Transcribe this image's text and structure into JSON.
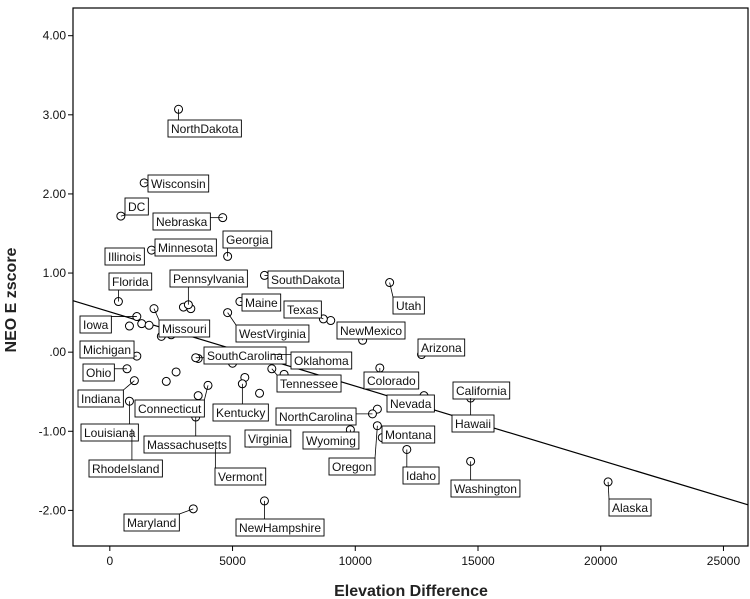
{
  "chart_data": {
    "type": "scatter",
    "xlabel": "Elevation Difference",
    "ylabel": "NEO E zscore",
    "xlim": [
      -1500,
      26000
    ],
    "ylim": [
      -2.45,
      4.35
    ],
    "x_ticks": [
      0,
      5000,
      10000,
      15000,
      20000,
      25000
    ],
    "x_tick_labels": [
      "0",
      "5000",
      "10000",
      "15000",
      "20000",
      "25000"
    ],
    "y_ticks": [
      4,
      3,
      2,
      1,
      0,
      -1,
      -2
    ],
    "y_tick_labels": [
      "4.00",
      "3.00",
      "2.00",
      "1.00",
      ".00",
      "-1.00",
      "-2.00"
    ],
    "grid": false,
    "fit_line": {
      "x": [
        -1500,
        26000
      ],
      "y": [
        0.65,
        -1.93
      ]
    },
    "points": [
      {
        "label": "NorthDakota",
        "x": 2800,
        "y": 3.07
      },
      {
        "label": "Wisconsin",
        "x": 1400,
        "y": 2.14
      },
      {
        "label": "DC",
        "x": 450,
        "y": 1.72
      },
      {
        "label": "Nebraska",
        "x": 4600,
        "y": 1.7
      },
      {
        "label": "Georgia",
        "x": 4800,
        "y": 1.21
      },
      {
        "label": "Minnesota",
        "x": 1700,
        "y": 1.29
      },
      {
        "label": "Illinois",
        "x": 700,
        "y": 1.18
      },
      {
        "label": "Florida",
        "x": 350,
        "y": 0.64
      },
      {
        "label": "Pennsylvania",
        "x": 3200,
        "y": 0.6
      },
      {
        "label": "SouthDakota",
        "x": 6300,
        "y": 0.97
      },
      {
        "label": "Maine",
        "x": 5300,
        "y": 0.64
      },
      {
        "label": "Texas",
        "x": 8700,
        "y": 0.42
      },
      {
        "label": "Utah",
        "x": 11400,
        "y": 0.88
      },
      {
        "label": "Iowa",
        "x": 1100,
        "y": 0.45
      },
      {
        "label": "Missouri",
        "x": 1800,
        "y": 0.55
      },
      {
        "label": "WestVirginia",
        "x": 4800,
        "y": 0.5
      },
      {
        "label": "NewMexico",
        "x": 10300,
        "y": 0.15
      },
      {
        "label": "Michigan",
        "x": 1100,
        "y": -0.05
      },
      {
        "label": "SouthCarolina",
        "x": 3500,
        "y": -0.07
      },
      {
        "label": "Oklahoma",
        "x": 6600,
        "y": -0.03
      },
      {
        "label": "Arizona",
        "x": 12700,
        "y": -0.03
      },
      {
        "label": "Ohio",
        "x": 700,
        "y": -0.21
      },
      {
        "label": "Colorado",
        "x": 11000,
        "y": -0.2
      },
      {
        "label": "Tennessee",
        "x": 6600,
        "y": -0.21
      },
      {
        "label": "Indiana",
        "x": 1000,
        "y": -0.36
      },
      {
        "label": "Connecticut",
        "x": 4000,
        "y": -0.42
      },
      {
        "label": "Kentucky",
        "x": 5400,
        "y": -0.4
      },
      {
        "label": "Nevada",
        "x": 12800,
        "y": -0.55
      },
      {
        "label": "California",
        "x": 14600,
        "y": -0.52
      },
      {
        "label": "Hawaii",
        "x": 14700,
        "y": -0.58
      },
      {
        "label": "Louisiana",
        "x": 800,
        "y": -0.62
      },
      {
        "label": "NorthCarolina",
        "x": 10700,
        "y": -0.78
      },
      {
        "label": "Massachusetts",
        "x": 3500,
        "y": -0.82
      },
      {
        "label": "Virginia",
        "x": 5700,
        "y": -1.15
      },
      {
        "label": "Wyoming",
        "x": 9800,
        "y": -0.98
      },
      {
        "label": "Montana",
        "x": 11100,
        "y": -1.08
      },
      {
        "label": "Oregon",
        "x": 10900,
        "y": -0.93
      },
      {
        "label": "RhodeIsland",
        "x": 900,
        "y": -0.97
      },
      {
        "label": "Vermont",
        "x": 4300,
        "y": -1.22
      },
      {
        "label": "Idaho",
        "x": 12100,
        "y": -1.23
      },
      {
        "label": "Washington",
        "x": 14700,
        "y": -1.38
      },
      {
        "label": "Alaska",
        "x": 20300,
        "y": -1.64
      },
      {
        "label": "Maryland",
        "x": 3400,
        "y": -1.98
      },
      {
        "label": "NewHampshire",
        "x": 6300,
        "y": -1.88
      }
    ],
    "extra_points": [
      {
        "x": 3000,
        "y": 0.57
      },
      {
        "x": 3300,
        "y": 0.55
      },
      {
        "x": 1300,
        "y": 0.36
      },
      {
        "x": 1600,
        "y": 0.34
      },
      {
        "x": 800,
        "y": 0.33
      },
      {
        "x": 2500,
        "y": 0.22
      },
      {
        "x": 2100,
        "y": 0.2
      },
      {
        "x": 9000,
        "y": 0.4
      },
      {
        "x": 3600,
        "y": -0.08
      },
      {
        "x": 5000,
        "y": -0.14
      },
      {
        "x": 5500,
        "y": -0.32
      },
      {
        "x": 7100,
        "y": -0.28
      },
      {
        "x": 2700,
        "y": -0.25
      },
      {
        "x": 2300,
        "y": -0.37
      },
      {
        "x": 6100,
        "y": -0.52
      },
      {
        "x": 3600,
        "y": -0.55
      },
      {
        "x": 10900,
        "y": -0.72
      }
    ]
  }
}
